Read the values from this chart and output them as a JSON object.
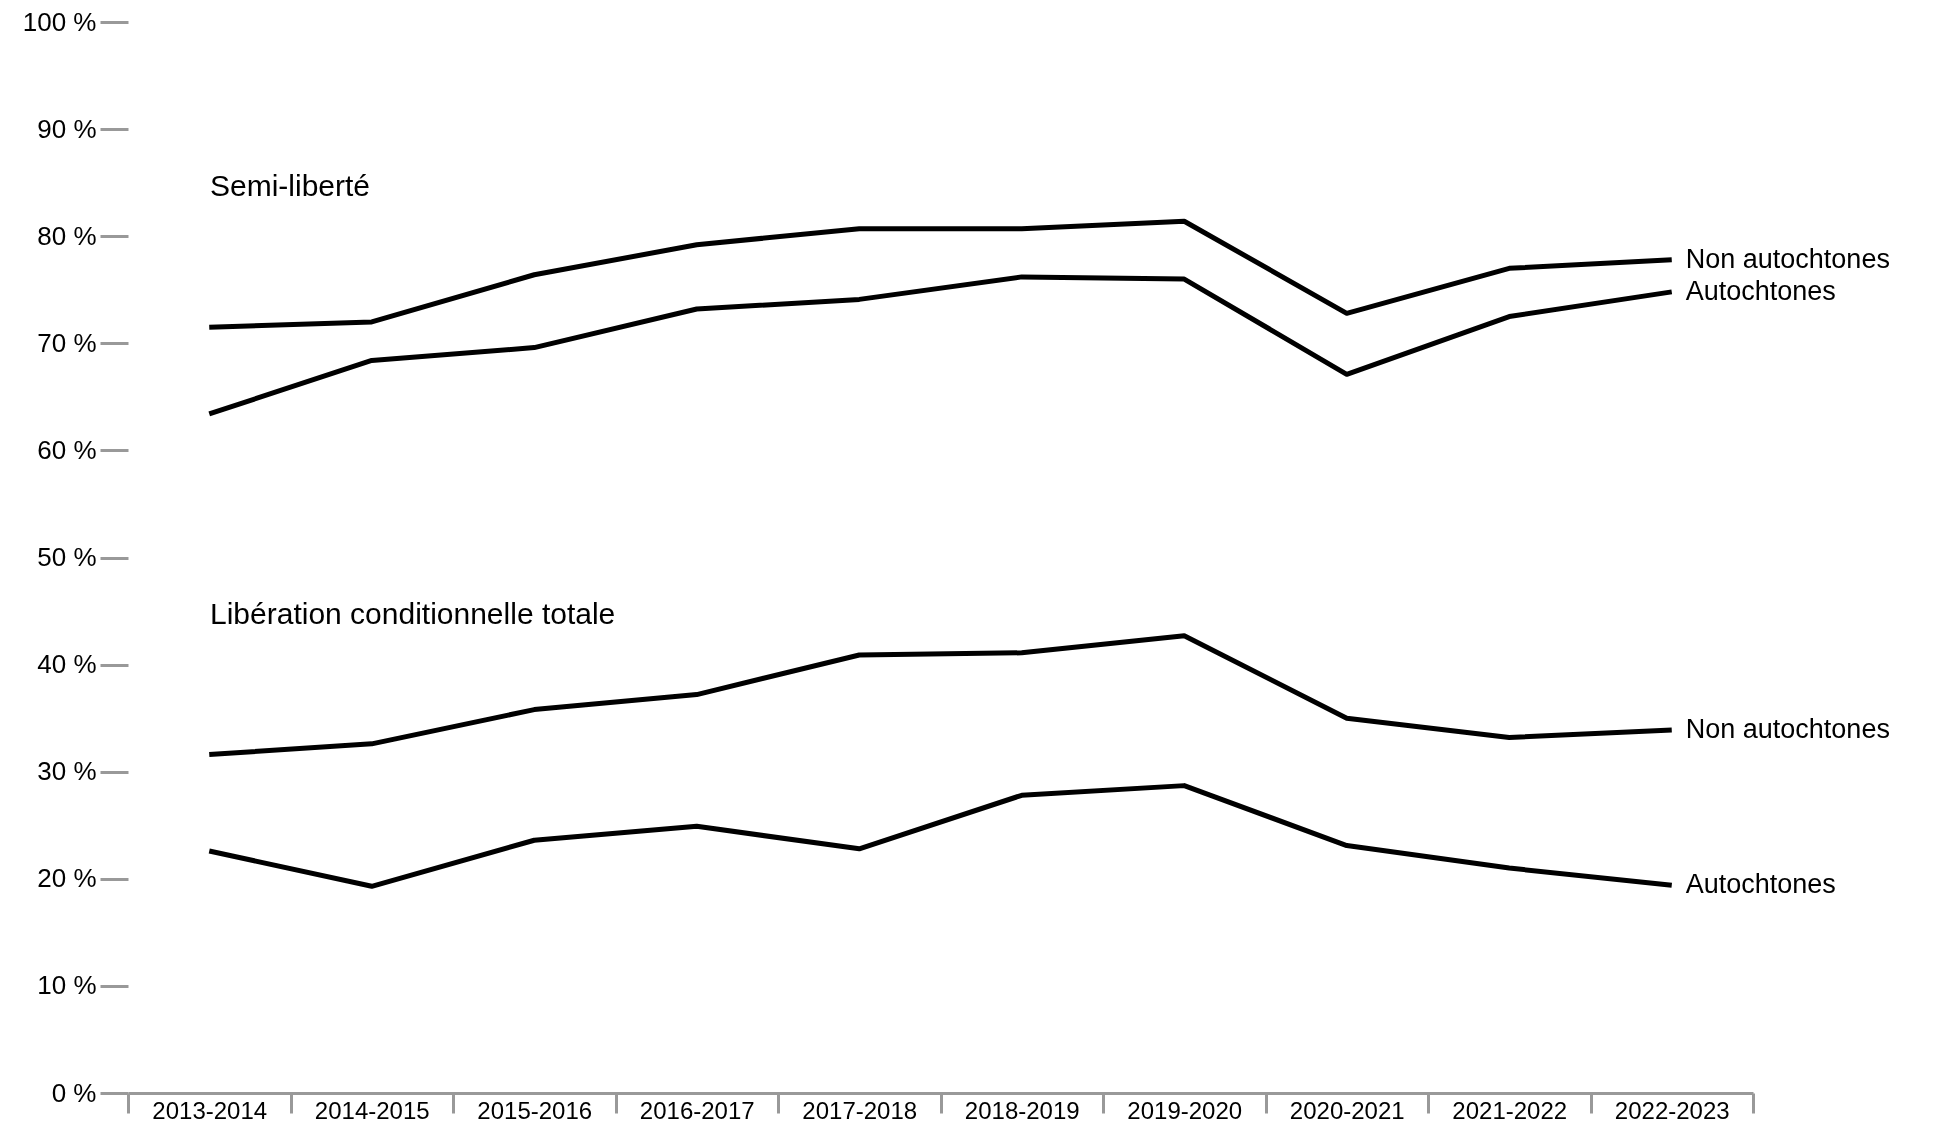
{
  "chart_data": {
    "type": "line",
    "categories": [
      "2013-2014",
      "2014-2015",
      "2015-2016",
      "2016-2017",
      "2017-2018",
      "2018-2019",
      "2019-2020",
      "2020-2021",
      "2021-2022",
      "2022-2023"
    ],
    "series": [
      {
        "name": "Non autochtones",
        "color": "#000000",
        "values": [
          71.5,
          72.0,
          76.4,
          79.2,
          80.7,
          80.7,
          81.4,
          72.8,
          77.0,
          77.8
        ]
      },
      {
        "name": "Autochtones",
        "color": "#000000",
        "values": [
          63.4,
          68.4,
          69.6,
          73.2,
          74.1,
          76.2,
          76.0,
          67.1,
          72.5,
          74.8
        ]
      },
      {
        "name": "Non autochtones",
        "color": "#000000",
        "values": [
          31.6,
          32.6,
          35.8,
          37.2,
          40.9,
          41.1,
          42.7,
          35.0,
          33.2,
          33.9
        ]
      },
      {
        "name": "Autochtones",
        "color": "#000000",
        "values": [
          22.6,
          19.3,
          23.6,
          24.9,
          22.8,
          27.8,
          28.7,
          23.1,
          21.0,
          19.4
        ]
      }
    ],
    "annotations": [
      "Semi-liberté",
      "Libération conditionnelle totale"
    ],
    "ylim": [
      0,
      100
    ],
    "yticks": [
      {
        "value": 0,
        "label": "0 %"
      },
      {
        "value": 10,
        "label": "10 %"
      },
      {
        "value": 20,
        "label": "20 %"
      },
      {
        "value": 30,
        "label": "30 %"
      },
      {
        "value": 40,
        "label": "40 %"
      },
      {
        "value": 50,
        "label": "50 %"
      },
      {
        "value": 60,
        "label": "60 %"
      },
      {
        "value": 70,
        "label": "70 %"
      },
      {
        "value": 80,
        "label": "80 %"
      },
      {
        "value": 90,
        "label": "90 %"
      },
      {
        "value": 100,
        "label": "100 %"
      }
    ],
    "line_style": "solid"
  }
}
